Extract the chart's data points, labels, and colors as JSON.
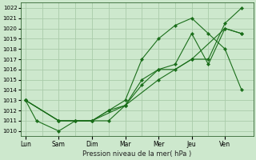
{
  "xlabel": "Pression niveau de la mer( hPa )",
  "background_color": "#cde8cd",
  "grid_color": "#aaccaa",
  "line_color": "#1a6e1a",
  "ylim": [
    1009.5,
    1022.5
  ],
  "yticks": [
    1010,
    1011,
    1012,
    1013,
    1014,
    1015,
    1016,
    1017,
    1018,
    1019,
    1020,
    1021,
    1022
  ],
  "x_labels": [
    "Lun",
    "Sam",
    "Dim",
    "Mar",
    "Mer",
    "Jeu",
    "Ven"
  ],
  "x_tick_pos": [
    0,
    1,
    2,
    3,
    4,
    5,
    6
  ],
  "xlim": [
    -0.15,
    6.85
  ],
  "series": [
    {
      "x": [
        0,
        0.33,
        1,
        1.5,
        2,
        2.5,
        3,
        3.5,
        4,
        4.5,
        5,
        5.5,
        6,
        6.5
      ],
      "y": [
        1013,
        1011,
        1010,
        1011,
        1011,
        1012,
        1013,
        1017,
        1019,
        1020.3,
        1021,
        1019.5,
        1018,
        1014
      ]
    },
    {
      "x": [
        0,
        1,
        1.5,
        2,
        2.5,
        3,
        3.5,
        4,
        4.5,
        5,
        5.5,
        6,
        6.5
      ],
      "y": [
        1013,
        1011,
        1011,
        1011,
        1012,
        1012.5,
        1014.5,
        1016,
        1016.5,
        1019.5,
        1016.5,
        1020,
        1019.5
      ]
    },
    {
      "x": [
        0,
        1,
        1.5,
        2,
        2.5,
        3,
        3.5,
        4,
        4.5,
        5,
        5.5,
        6,
        6.5
      ],
      "y": [
        1013,
        1011,
        1011,
        1011,
        1011,
        1012.5,
        1015,
        1016,
        1016,
        1017,
        1017,
        1020.5,
        1022
      ]
    },
    {
      "x": [
        0,
        1,
        2,
        3,
        4,
        5,
        6,
        6.5
      ],
      "y": [
        1013,
        1011,
        1011,
        1012.5,
        1015,
        1017,
        1020,
        1019.5
      ]
    }
  ]
}
